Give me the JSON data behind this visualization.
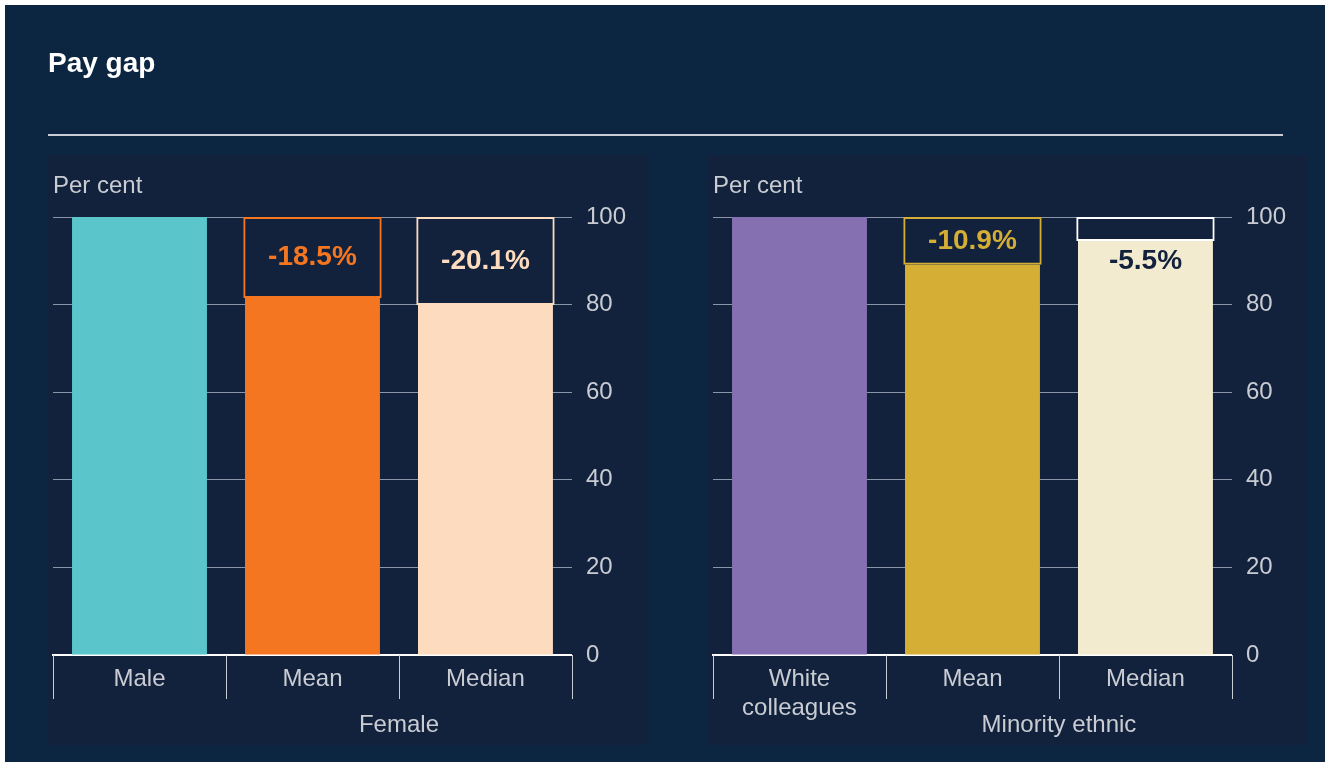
{
  "chart_data": [
    {
      "type": "bar",
      "title": "Pay gap",
      "ylabel": "Per cent",
      "xlabel": "Female",
      "categories": [
        "Male",
        "Mean",
        "Median"
      ],
      "ylim": [
        0,
        100
      ],
      "yticks": [
        0,
        20,
        40,
        60,
        80,
        100
      ],
      "grid": "y",
      "series": [
        {
          "type": "bar",
          "colors": [
            "#5bc5cc",
            "#f47621",
            "#fddbbf"
          ],
          "values": [
            100,
            81.5,
            79.9
          ]
        },
        {
          "type": "bar",
          "colors": [
            null,
            "#f47621",
            "#fddbbf"
          ],
          "base": [
            null,
            100,
            100
          ],
          "values": [
            null,
            -18.5,
            -20.1
          ],
          "value_labels": [
            null,
            "-18.5%",
            "-20.1%"
          ]
        }
      ]
    },
    {
      "type": "bar",
      "ylabel": "Per cent",
      "xlabel": "Minority ethnic",
      "categories": [
        "White colleagues",
        "Mean",
        "Median"
      ],
      "ylim": [
        0,
        100
      ],
      "yticks": [
        0,
        20,
        40,
        60,
        80,
        100
      ],
      "grid": "y",
      "series": [
        {
          "type": "bar",
          "colors": [
            "#8570b2",
            "#d4ae35",
            "#f3ebd0"
          ],
          "values": [
            100,
            89.1,
            94.5
          ]
        },
        {
          "type": "bar",
          "colors": [
            null,
            "#d4ae35",
            "#ffffff"
          ],
          "base": [
            null,
            100,
            100
          ],
          "values": [
            null,
            -10.9,
            -5.5
          ],
          "value_labels": [
            null,
            "-10.9%",
            "-5.5%"
          ]
        }
      ]
    }
  ]
}
